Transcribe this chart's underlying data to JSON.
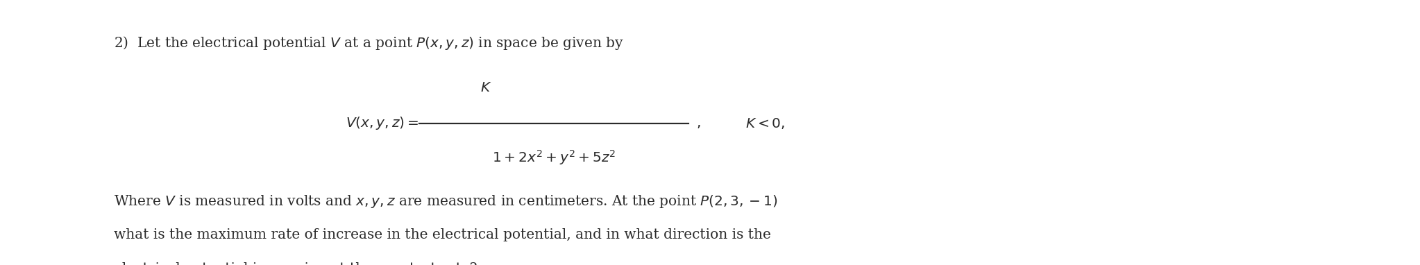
{
  "bg_color": "#ffffff",
  "text_color": "#2b2b2b",
  "line1": "2)  Let the electrical potential $V$ at a point $P(x, y, z)$ in space be given by",
  "formula_lhs": "$V(x, y, z) = $",
  "formula_numerator": "$K$",
  "formula_denominator": "$1 + 2x^2 + y^2 + 5z^2$",
  "formula_comma": "$,$",
  "formula_condition": "$K < 0,$",
  "line3": "Where $V$ is measured in volts and $x, y, z$ are measured in centimeters. At the point $P(2, 3, -1)$",
  "line4": "what is the maximum rate of increase in the electrical potential, and in what direction is the",
  "line5": "electrical potential increasing at the greatest rate?",
  "fontsize_main": 14.5,
  "fig_width": 20.46,
  "fig_height": 3.82,
  "dpi": 100
}
